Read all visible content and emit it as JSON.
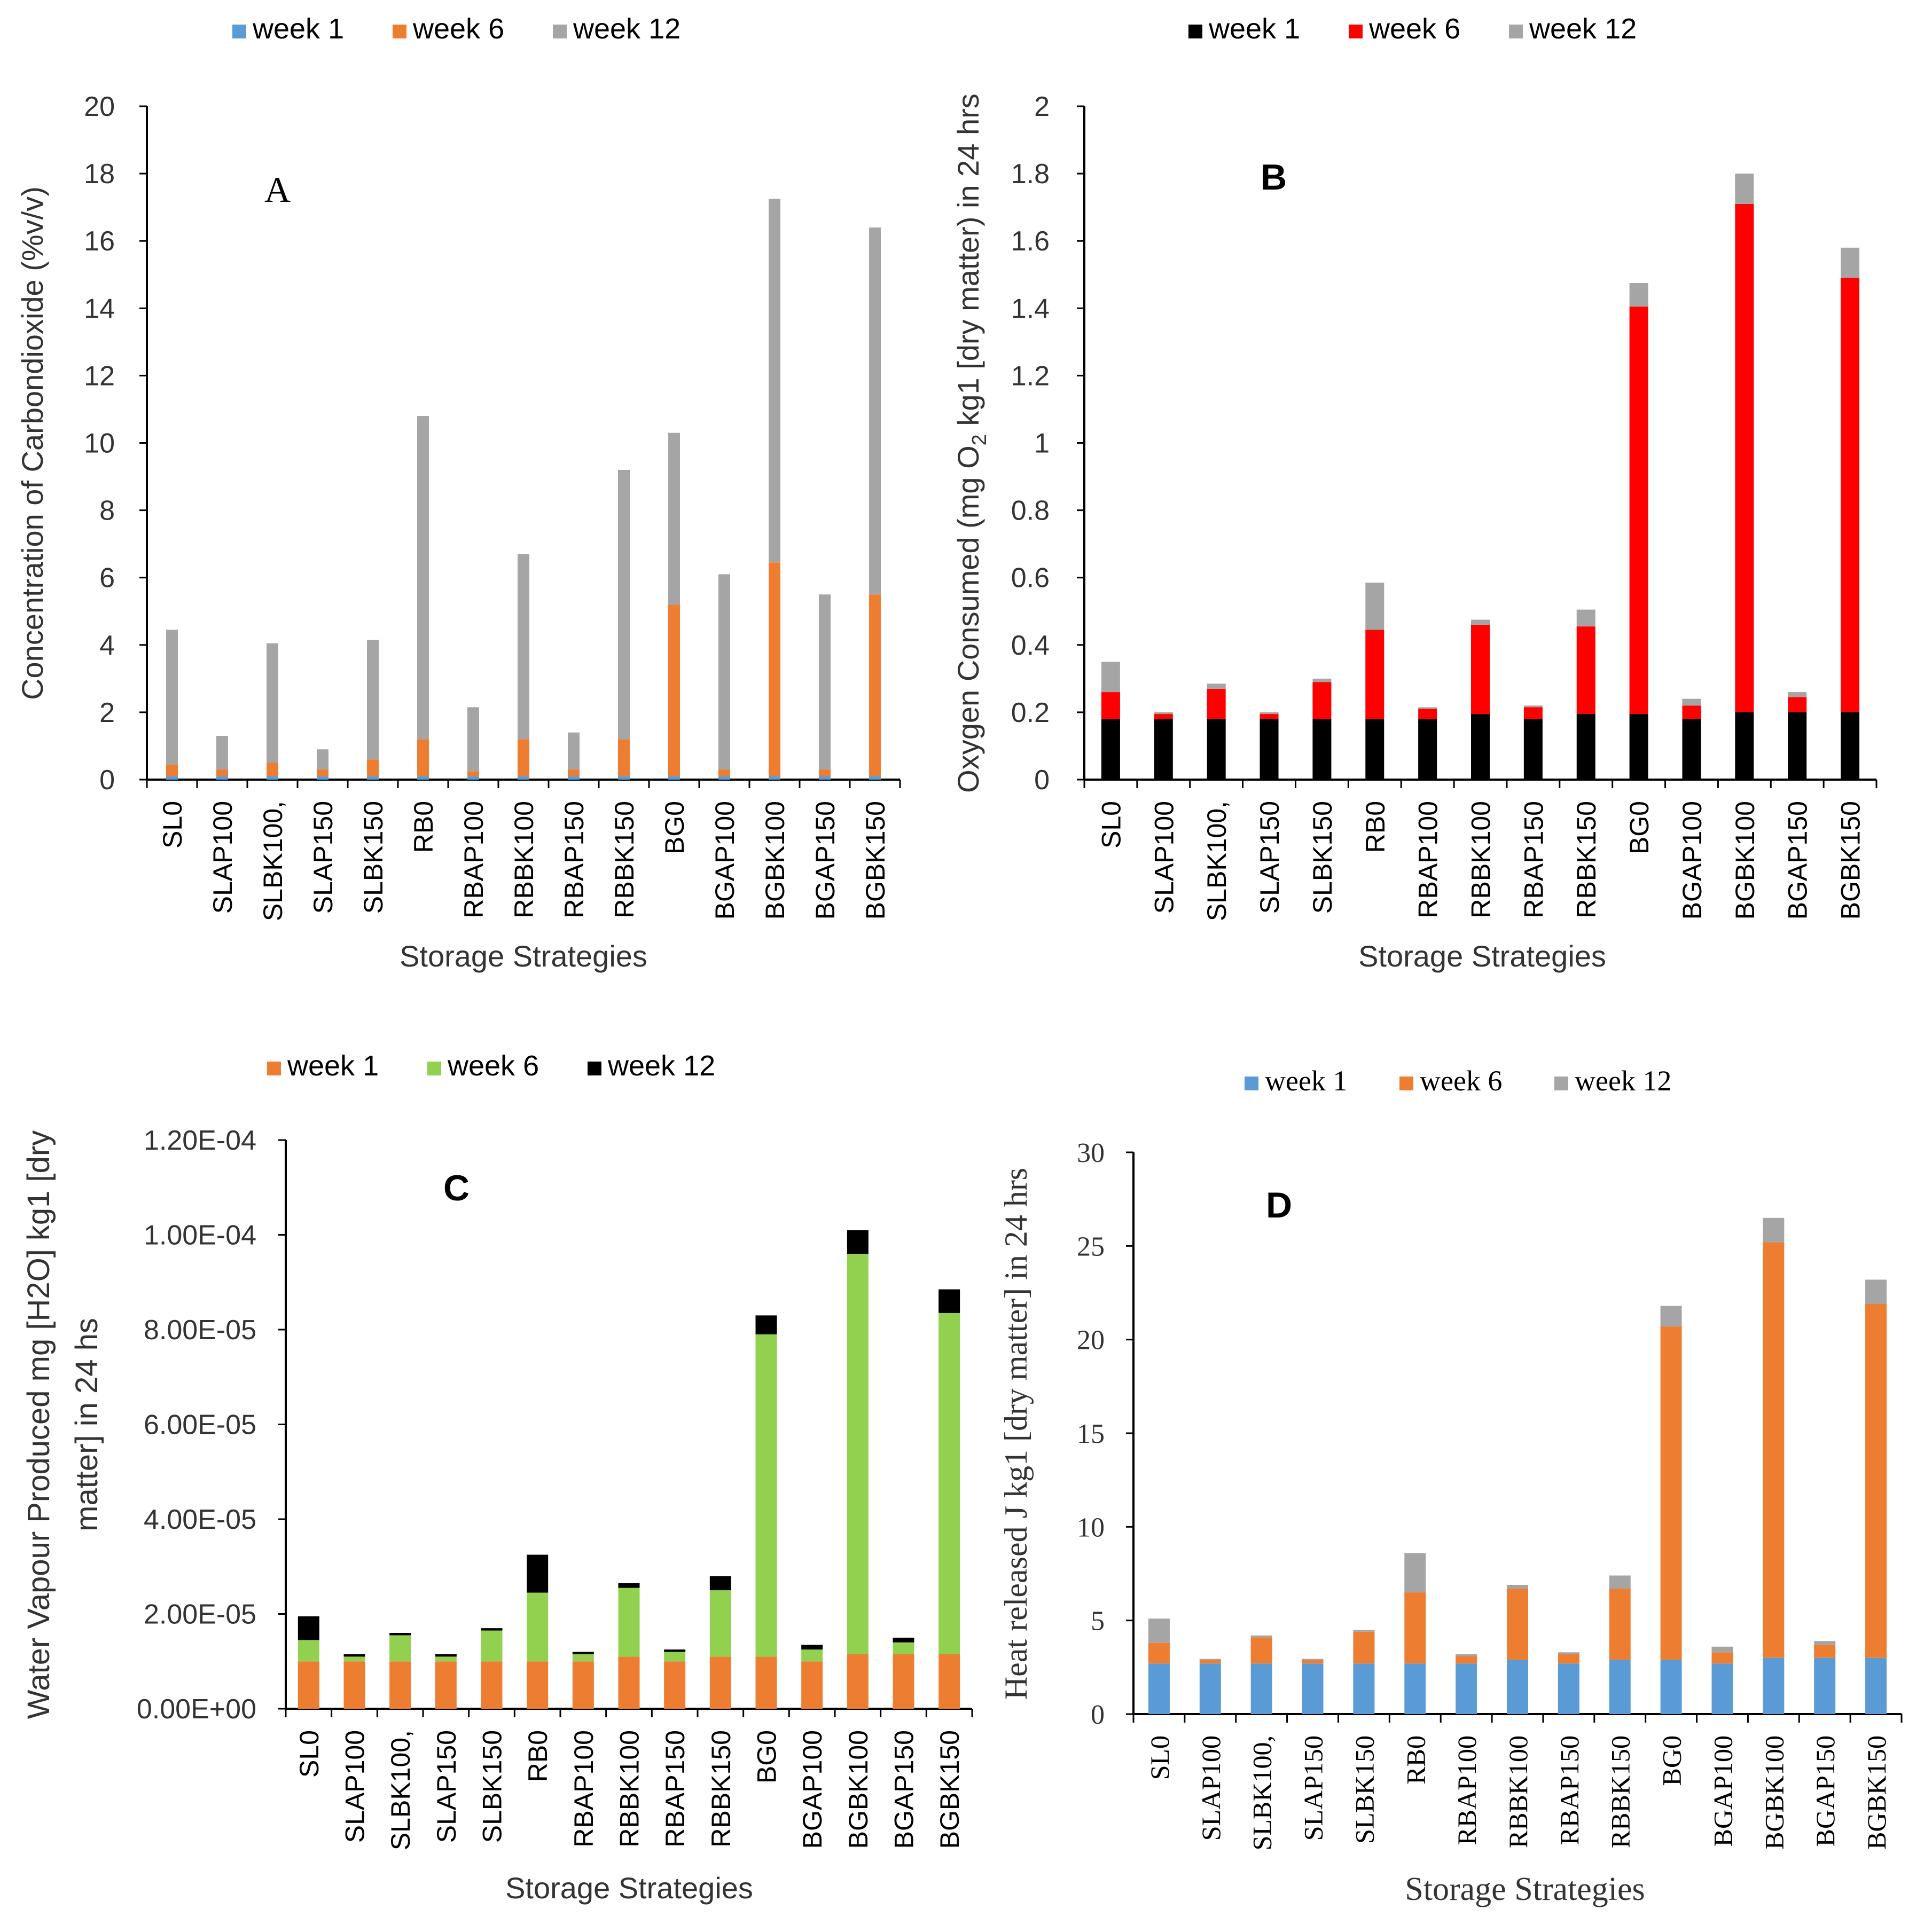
{
  "figure": {
    "categories": [
      "SL0",
      "SLAP100",
      "SLBK100,",
      "SLAP150",
      "SLBK150",
      "RB0",
      "RBAP100",
      "RBBK100",
      "RBAP150",
      "RBBK150",
      "BG0",
      "BGAP100",
      "BGBK100",
      "BGAP150",
      "BGBK150"
    ]
  },
  "chart_data": [
    {
      "id": "A",
      "type": "bar",
      "stacked": true,
      "panel_label": "A",
      "title": "",
      "xlabel": "Storage Strategies",
      "ylabel": "Concentration of Carbondioxide (%v/v)",
      "ylim": [
        0,
        20
      ],
      "yticks": [
        0,
        2,
        4,
        6,
        8,
        10,
        12,
        14,
        16,
        18,
        20
      ],
      "ytick_labels": [
        "0",
        "2",
        "4",
        "6",
        "8",
        "10",
        "12",
        "14",
        "16",
        "18",
        "20"
      ],
      "categories": [
        "SL0",
        "SLAP100",
        "SLBK100,",
        "SLAP150",
        "SLBK150",
        "RB0",
        "RBAP100",
        "RBBK100",
        "RBAP150",
        "RBBK150",
        "BG0",
        "BGAP100",
        "BGBK100",
        "BGAP150",
        "BGBK150"
      ],
      "series": [
        {
          "name": "week 1",
          "color": "#5B9BD5",
          "values": [
            0.1,
            0.1,
            0.1,
            0.1,
            0.1,
            0.1,
            0.1,
            0.1,
            0.1,
            0.1,
            0.1,
            0.1,
            0.1,
            0.1,
            0.1
          ]
        },
        {
          "name": "week 6",
          "color": "#ED7D31",
          "values": [
            0.35,
            0.2,
            0.4,
            0.2,
            0.5,
            1.1,
            0.15,
            1.1,
            0.2,
            1.1,
            5.1,
            0.2,
            6.35,
            0.2,
            5.4
          ]
        },
        {
          "name": "week 12",
          "color": "#A5A5A5",
          "values": [
            4.0,
            1.0,
            3.55,
            0.6,
            3.55,
            9.6,
            1.9,
            5.5,
            1.1,
            8.0,
            5.1,
            5.8,
            10.8,
            5.2,
            10.9
          ]
        }
      ]
    },
    {
      "id": "B",
      "type": "bar",
      "stacked": true,
      "panel_label": "B",
      "title": "",
      "xlabel": "Storage Strategies",
      "ylabel_parts": [
        "Oxygen Consumed (mg O",
        "2",
        " kg1 [dry matter) in 24 hrs"
      ],
      "ylim": [
        0,
        2
      ],
      "yticks": [
        0,
        0.2,
        0.4,
        0.6,
        0.8,
        1,
        1.2,
        1.4,
        1.6,
        1.8,
        2
      ],
      "ytick_labels": [
        "0",
        "0.2",
        "0.4",
        "0.6",
        "0.8",
        "1",
        "1.2",
        "1.4",
        "1.6",
        "1.8",
        "2"
      ],
      "categories": [
        "SL0",
        "SLAP100",
        "SLBK100,",
        "SLAP150",
        "SLBK150",
        "RB0",
        "RBAP100",
        "RBBK100",
        "RBAP150",
        "RBBK150",
        "BG0",
        "BGAP100",
        "BGBK100",
        "BGAP150",
        "BGBK150"
      ],
      "series": [
        {
          "name": "week 1",
          "color": "#000000",
          "values": [
            0.18,
            0.18,
            0.18,
            0.18,
            0.18,
            0.18,
            0.18,
            0.195,
            0.18,
            0.195,
            0.195,
            0.18,
            0.2,
            0.2,
            0.2
          ]
        },
        {
          "name": "week 6",
          "color": "#FF0000",
          "values": [
            0.08,
            0.015,
            0.09,
            0.015,
            0.11,
            0.265,
            0.03,
            0.265,
            0.035,
            0.26,
            1.21,
            0.04,
            1.51,
            0.045,
            1.29
          ]
        },
        {
          "name": "week 12",
          "color": "#A5A5A5",
          "values": [
            0.09,
            0.005,
            0.015,
            0.005,
            0.01,
            0.14,
            0.005,
            0.015,
            0.005,
            0.05,
            0.07,
            0.02,
            0.09,
            0.015,
            0.09
          ]
        }
      ]
    },
    {
      "id": "C",
      "type": "bar",
      "stacked": true,
      "panel_label": "C",
      "title": "",
      "xlabel": "Storage Strategies",
      "ylabel_lines": [
        "Water Vapour Produced mg [H2O] kg1 [dry",
        "matter] in 24 hs"
      ],
      "ylim": [
        0,
        0.00012
      ],
      "yticks": [
        0,
        2e-05,
        4e-05,
        6e-05,
        8e-05,
        0.0001,
        0.00012
      ],
      "ytick_labels": [
        "0.00E+00",
        "2.00E-05",
        "4.00E-05",
        "6.00E-05",
        "8.00E-05",
        "1.00E-04",
        "1.20E-04"
      ],
      "categories": [
        "SL0",
        "SLAP100",
        "SLBK100,",
        "SLAP150",
        "SLBK150",
        "RB0",
        "RBAP100",
        "RBBK100",
        "RBAP150",
        "RBBK150",
        "BG0",
        "BGAP100",
        "BGBK100",
        "BGAP150",
        "BGBK150"
      ],
      "series": [
        {
          "name": "week 1",
          "color": "#ED7D31",
          "values": [
            1e-05,
            1e-05,
            1e-05,
            1e-05,
            1e-05,
            1e-05,
            1e-05,
            1.1e-05,
            1e-05,
            1.1e-05,
            1.1e-05,
            1e-05,
            1.15e-05,
            1.15e-05,
            1.15e-05
          ]
        },
        {
          "name": "week 6",
          "color": "#92D050",
          "values": [
            4.5e-06,
            1e-06,
            5.5e-06,
            1e-06,
            6.5e-06,
            1.45e-05,
            1.5e-06,
            1.45e-05,
            2e-06,
            1.4e-05,
            6.8e-05,
            2.5e-06,
            8.45e-05,
            2.5e-06,
            7.2e-05
          ]
        },
        {
          "name": "week 12",
          "color": "#000000",
          "values": [
            5e-06,
            5e-07,
            5e-07,
            5e-07,
            5e-07,
            8e-06,
            5e-07,
            1e-06,
            5e-07,
            3e-06,
            4e-06,
            1e-06,
            5e-06,
            1e-06,
            5e-06
          ]
        }
      ]
    },
    {
      "id": "D",
      "type": "bar",
      "stacked": true,
      "panel_label": "D",
      "title": "",
      "xlabel": "Storage Strategies",
      "ylabel": "Heat released J kg1 [dry matter] in 24 hrs",
      "ylim": [
        0,
        30
      ],
      "yticks": [
        0,
        5,
        10,
        15,
        20,
        25,
        30
      ],
      "ytick_labels": [
        "0",
        "5",
        "10",
        "15",
        "20",
        "25",
        "30"
      ],
      "categories": [
        "SL0",
        "SLAP100",
        "SLBK100,",
        "SLAP150",
        "SLBK150",
        "RB0",
        "RBAP100",
        "RBBK100",
        "RBAP150",
        "RBBK150",
        "BG0",
        "BGAP100",
        "BGBK100",
        "BGAP150",
        "BGBK150"
      ],
      "series": [
        {
          "name": "week 1",
          "color": "#5B9BD5",
          "values": [
            2.7,
            2.7,
            2.7,
            2.7,
            2.7,
            2.7,
            2.7,
            2.9,
            2.7,
            2.9,
            2.9,
            2.7,
            3.0,
            3.0,
            3.0
          ]
        },
        {
          "name": "week 6",
          "color": "#ED7D31",
          "values": [
            1.1,
            0.2,
            1.4,
            0.2,
            1.7,
            3.8,
            0.4,
            3.8,
            0.5,
            3.8,
            17.8,
            0.6,
            22.2,
            0.7,
            18.9
          ]
        },
        {
          "name": "week 12",
          "color": "#A5A5A5",
          "values": [
            1.3,
            0.05,
            0.1,
            0.05,
            0.1,
            2.1,
            0.1,
            0.2,
            0.1,
            0.7,
            1.1,
            0.3,
            1.3,
            0.2,
            1.3
          ]
        }
      ]
    }
  ]
}
